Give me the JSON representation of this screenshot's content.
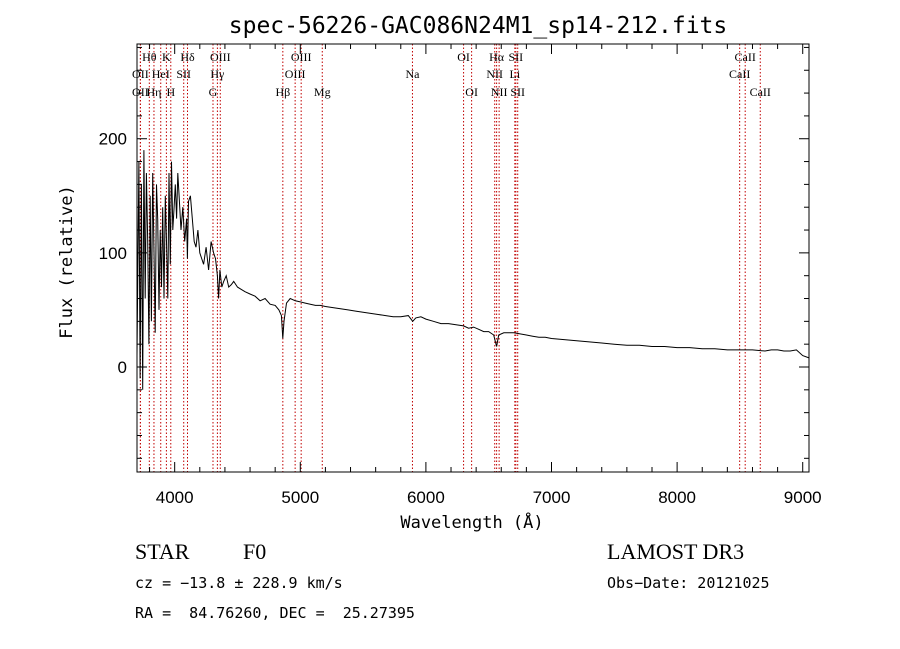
{
  "chart_data": {
    "type": "line",
    "title": "spec-56226-GAC086N24M1_sp14-212.fits",
    "xlabel": "Wavelength (Å)",
    "ylabel": "Flux (relative)",
    "xlim": [
      3700,
      9050
    ],
    "ylim": [
      -92,
      283
    ],
    "x_ticks": [
      4000,
      5000,
      6000,
      7000,
      8000,
      9000
    ],
    "y_ticks": [
      0,
      100,
      200
    ],
    "series": [
      {
        "name": "flux",
        "x": [
          3700,
          3715,
          3725,
          3735,
          3745,
          3755,
          3765,
          3775,
          3785,
          3795,
          3805,
          3815,
          3825,
          3835,
          3845,
          3855,
          3865,
          3875,
          3885,
          3895,
          3905,
          3915,
          3925,
          3935,
          3945,
          3955,
          3965,
          3975,
          3985,
          3995,
          4005,
          4015,
          4025,
          4035,
          4050,
          4065,
          4080,
          4095,
          4101,
          4110,
          4125,
          4140,
          4155,
          4170,
          4185,
          4200,
          4215,
          4230,
          4250,
          4270,
          4290,
          4310,
          4325,
          4340,
          4350,
          4360,
          4375,
          4390,
          4410,
          4430,
          4450,
          4470,
          4500,
          4530,
          4560,
          4600,
          4640,
          4680,
          4720,
          4760,
          4800,
          4830,
          4850,
          4861,
          4870,
          4890,
          4920,
          4960,
          5000,
          5040,
          5080,
          5120,
          5160,
          5200,
          5260,
          5320,
          5380,
          5440,
          5500,
          5560,
          5620,
          5680,
          5740,
          5800,
          5860,
          5895,
          5920,
          5960,
          6000,
          6060,
          6120,
          6180,
          6240,
          6300,
          6340,
          6380,
          6420,
          6460,
          6500,
          6540,
          6563,
          6580,
          6620,
          6660,
          6700,
          6750,
          6800,
          6850,
          6900,
          6950,
          7000,
          7100,
          7200,
          7300,
          7400,
          7500,
          7600,
          7700,
          7800,
          7900,
          8000,
          8100,
          8200,
          8300,
          8400,
          8500,
          8600,
          8700,
          8750,
          8800,
          8850,
          8900,
          8950,
          9000,
          9050
        ],
        "values": [
          10,
          180,
          -10,
          160,
          -20,
          190,
          60,
          170,
          110,
          20,
          150,
          40,
          170,
          100,
          30,
          160,
          130,
          50,
          120,
          70,
          140,
          60,
          150,
          110,
          60,
          170,
          90,
          180,
          120,
          140,
          160,
          130,
          170,
          150,
          120,
          140,
          110,
          130,
          95,
          145,
          150,
          130,
          110,
          105,
          120,
          100,
          95,
          90,
          105,
          85,
          110,
          100,
          95,
          80,
          60,
          85,
          70,
          75,
          80,
          70,
          72,
          75,
          70,
          68,
          66,
          64,
          62,
          58,
          60,
          55,
          54,
          50,
          45,
          25,
          40,
          56,
          60,
          58,
          57,
          56,
          55,
          54,
          54,
          53,
          52,
          51,
          50,
          49,
          48,
          47,
          46,
          45,
          44,
          44,
          45,
          40,
          43,
          44,
          42,
          40,
          38,
          38,
          37,
          36,
          34,
          35,
          33,
          31,
          31,
          28,
          18,
          28,
          30,
          30,
          30,
          29,
          28,
          27,
          26,
          26,
          25,
          24,
          23,
          22,
          21,
          20,
          19,
          19,
          18,
          18,
          17,
          17,
          16,
          16,
          15,
          15,
          15,
          14,
          15,
          15,
          14,
          14,
          15,
          10,
          8
        ]
      }
    ],
    "spectral_lines": [
      {
        "label": "OII",
        "wavelength": 3727,
        "row": 2
      },
      {
        "label": "Hθ",
        "wavelength": 3798,
        "row": 1
      },
      {
        "label": "OII",
        "wavelength": 3727,
        "row": 3
      },
      {
        "label": "Hη",
        "wavelength": 3835,
        "row": 3
      },
      {
        "label": "HeI",
        "wavelength": 3889,
        "row": 2
      },
      {
        "label": "K",
        "wavelength": 3934,
        "row": 1
      },
      {
        "label": "H",
        "wavelength": 3969,
        "row": 3
      },
      {
        "label": "SII",
        "wavelength": 4072,
        "row": 2
      },
      {
        "label": "Hδ",
        "wavelength": 4102,
        "row": 1
      },
      {
        "label": "OIII",
        "wavelength": 4363,
        "row": 1
      },
      {
        "label": "Hγ",
        "wavelength": 4340,
        "row": 2
      },
      {
        "label": "G",
        "wavelength": 4305,
        "row": 3
      },
      {
        "label": "Hβ",
        "wavelength": 4861,
        "row": 3
      },
      {
        "label": "OIII",
        "wavelength": 4959,
        "row": 2
      },
      {
        "label": "OIII",
        "wavelength": 5007,
        "row": 1
      },
      {
        "label": "Mg",
        "wavelength": 5175,
        "row": 3
      },
      {
        "label": "Na",
        "wavelength": 5893,
        "row": 2
      },
      {
        "label": "OI",
        "wavelength": 6300,
        "row": 1
      },
      {
        "label": "OI",
        "wavelength": 6364,
        "row": 3
      },
      {
        "label": "Hα",
        "wavelength": 6563,
        "row": 1
      },
      {
        "label": "NII",
        "wavelength": 6548,
        "row": 2
      },
      {
        "label": "NII",
        "wavelength": 6583,
        "row": 3
      },
      {
        "label": "SII",
        "wavelength": 6716,
        "row": 1
      },
      {
        "label": "Li",
        "wavelength": 6708,
        "row": 2
      },
      {
        "label": "SII",
        "wavelength": 6731,
        "row": 3
      },
      {
        "label": "CaII",
        "wavelength": 8498,
        "row": 2
      },
      {
        "label": "CaII",
        "wavelength": 8542,
        "row": 1
      },
      {
        "label": "CaII",
        "wavelength": 8662,
        "row": 3
      }
    ]
  },
  "info": {
    "object_class": "STAR",
    "subclass": "F0",
    "survey": "LAMOST DR3",
    "cz": "cz = −13.8 ± 228.9 km/s",
    "obs_date": "Obs−Date: 20121025",
    "radec": "RA =  84.76260, DEC =  25.27395"
  },
  "colors": {
    "line_marker": "#c00000",
    "spectrum": "#000000"
  }
}
